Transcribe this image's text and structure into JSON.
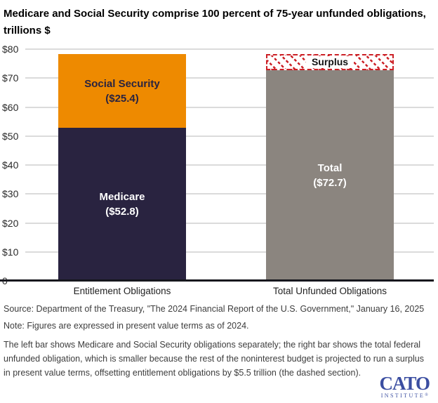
{
  "header": {
    "title_line1": "Medicare and Social Security comprise 100 percent of 75-year unfunded obligations,",
    "title_line2": "trillions $"
  },
  "chart_data": {
    "type": "bar",
    "stacked": true,
    "title": "Medicare and Social Security comprise 100 percent of 75-year unfunded obligations, trillions $",
    "ylim": [
      0,
      80
    ],
    "grid": true,
    "yticks": [
      [
        0,
        "0"
      ],
      [
        10,
        "$10"
      ],
      [
        20,
        "$20"
      ],
      [
        30,
        "$30"
      ],
      [
        40,
        "$40"
      ],
      [
        50,
        "$50"
      ],
      [
        60,
        "$60"
      ],
      [
        70,
        "$70"
      ],
      [
        80,
        "$80"
      ]
    ],
    "categories": [
      "Entitlement Obligations",
      "Total Unfunded Obligations"
    ],
    "bars": [
      {
        "category": "Entitlement Obligations",
        "segments": [
          {
            "name": "Medicare",
            "value": 52.8,
            "value_label": "($52.8)",
            "color": "#292340",
            "text_color": "#ffffff",
            "hatch": false
          },
          {
            "name": "Social Security",
            "value": 25.4,
            "value_label": "($25.4)",
            "color": "#EE8A00",
            "text_color": "#292340",
            "hatch": false
          }
        ]
      },
      {
        "category": "Total Unfunded Obligations",
        "segments": [
          {
            "name": "Total",
            "value": 72.7,
            "value_label": "($72.7)",
            "color": "#8B857F",
            "text_color": "#ffffff",
            "hatch": false
          },
          {
            "name": "Surplus",
            "value": 5.5,
            "value_label": "",
            "color": "#ffffff",
            "text_color": "#121212",
            "hatch": true
          }
        ]
      }
    ],
    "colors": {
      "medicare": "#292340",
      "social_security": "#EE8A00",
      "total": "#8B857F",
      "surplus_border": "#CC2026",
      "gridline": "#dbdbdb",
      "axis": "#16161d"
    }
  },
  "footer": {
    "source": "Source: Department of the Treasury, \"The 2024 Financial Report of the U.S. Government,\" January 16, 2025",
    "note": "Note: Figures are expressed in present value terms as of 2024.",
    "caption": "The left bar shows Medicare and Social Security obligations separately; the right bar shows the total federal unfunded obligation, which is smaller because the rest of the noninterest budget is projected to run a surplus in present value terms, offsetting entitlement obligations by $5.5 trillion (the dashed section).",
    "logo_main": "CATO",
    "logo_sub": "INSTITUTE",
    "logo_reg": "®"
  }
}
